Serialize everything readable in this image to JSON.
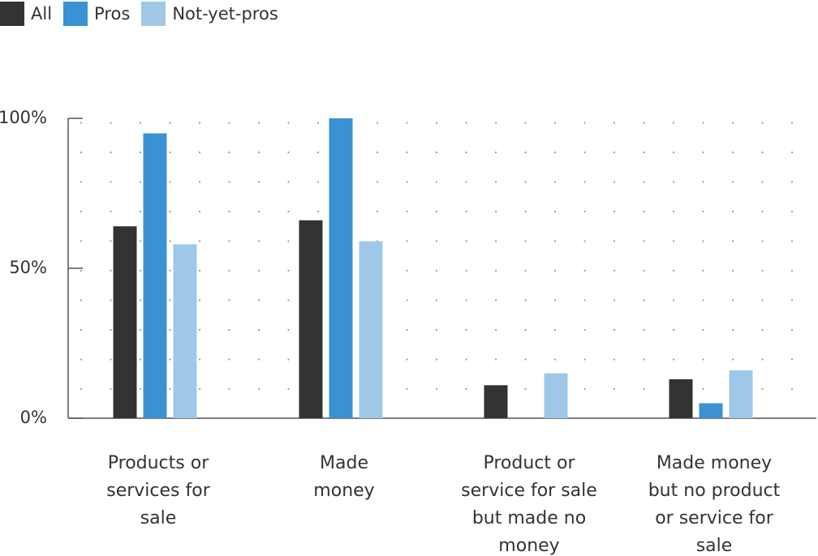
{
  "chart_data": {
    "type": "bar",
    "categories": [
      [
        "Products or",
        "services for",
        "sale"
      ],
      [
        "Made",
        "money"
      ],
      [
        "Product or",
        "service for sale",
        "but made no",
        "money"
      ],
      [
        "Made money",
        "but no product",
        "or service for",
        "sale"
      ]
    ],
    "series": [
      {
        "name": "All",
        "color": "#333333",
        "values": [
          64,
          66,
          11,
          13
        ]
      },
      {
        "name": "Pros",
        "color": "#3a92d4",
        "values": [
          95,
          100,
          0,
          5
        ]
      },
      {
        "name": "Not-yet-pros",
        "color": "#9fc8e8",
        "values": [
          58,
          59,
          15,
          16
        ]
      }
    ],
    "y_ticks": [
      {
        "value": 0,
        "label": "0%"
      },
      {
        "value": 50,
        "label": "50%"
      },
      {
        "value": 100,
        "label": "100%"
      }
    ],
    "ylim": [
      0,
      100
    ],
    "grid": "dotted",
    "legend_position": "top-left"
  }
}
